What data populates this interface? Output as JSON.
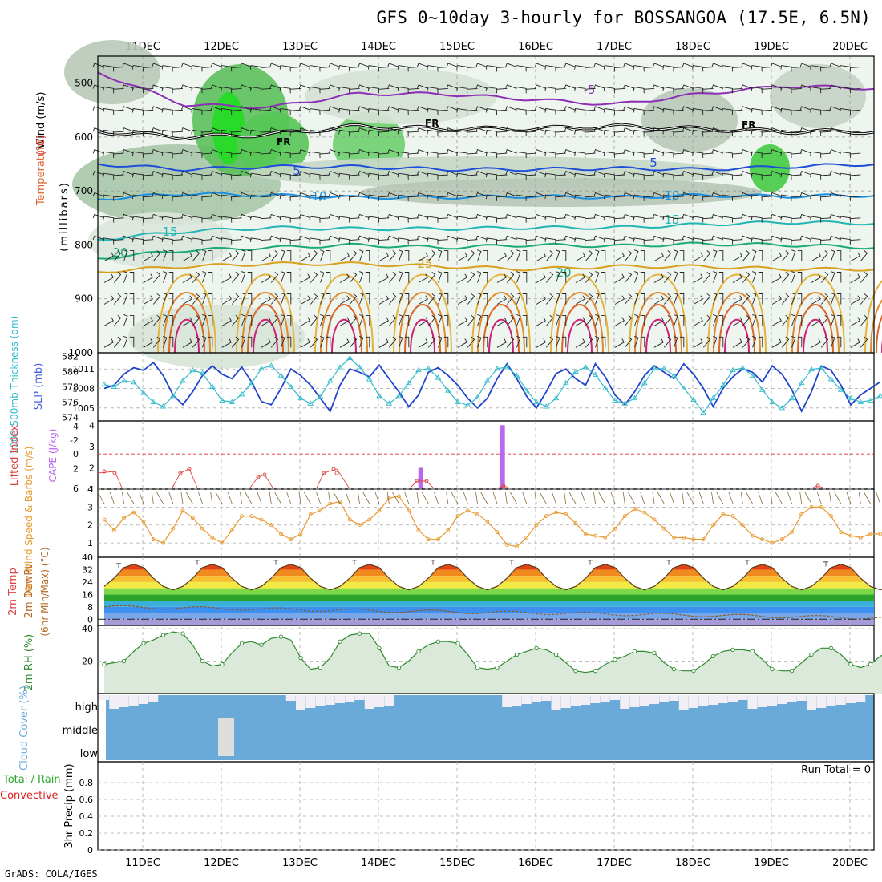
{
  "title": "GFS 0~10day 3-hourly for BOSSANGOA (17.5E, 6.5N)",
  "footer": "GrADS: COLA/IGES",
  "run_total": "Run Total = 0",
  "colors": {
    "wind": "#cc3399",
    "temperature": "#dd3333",
    "rh_green": "#2aa52a",
    "slp": "#2244cc",
    "thickness": "#33bbcc",
    "cape": "#bb66ee",
    "lifted": "#dd4444",
    "wind10": "#e89a33",
    "cloud": "#6aaad8",
    "cloud_bg": "#f1eef6",
    "rh2m": "#2e8a2e",
    "precip_total": "#2aa52a",
    "precip_conv": "#dd2222"
  },
  "chart_data": [
    {
      "id": "upper-air",
      "type": "heatmap",
      "x_dates": [
        "11DEC",
        "12DEC",
        "13DEC",
        "14DEC",
        "15DEC",
        "16DEC",
        "17DEC",
        "18DEC",
        "19DEC",
        "20DEC"
      ],
      "ylabel_parts": [
        "RH (%)",
        "Temperature",
        "(°C)",
        "Wind (m/s)",
        "(millibars)"
      ],
      "yticks": [
        500,
        600,
        700,
        800,
        900,
        1000
      ],
      "ylim": [
        450,
        1000
      ],
      "rh_labels": [
        "10",
        "30",
        "50",
        "500",
        "30"
      ],
      "freezing_label": "FR",
      "temp_contours": [
        {
          "label": "-5",
          "color": "#8c2fb6",
          "levels": [
            480,
            540,
            545,
            520,
            520,
            530,
            540,
            520,
            505,
            510
          ],
          "label_at": 6
        },
        {
          "label": "5",
          "color": "#1f4fd6",
          "levels": [
            650,
            660,
            655,
            655,
            660,
            660,
            658,
            660,
            655,
            650
          ],
          "label_at": 7
        },
        {
          "label": "10",
          "color": "#1a8fe0",
          "levels": [
            715,
            705,
            708,
            712,
            712,
            710,
            712,
            708,
            710,
            708
          ],
          "label_at": 7
        },
        {
          "label": "15",
          "color": "#22b5b5",
          "levels": [
            790,
            775,
            768,
            770,
            770,
            768,
            768,
            762,
            758,
            760
          ],
          "label_at": 7
        },
        {
          "label": "20",
          "color": "#1aa97a",
          "levels": [
            825,
            810,
            805,
            800,
            805,
            800,
            802,
            798,
            800,
            805
          ],
          "label_at": 5
        },
        {
          "label": "25",
          "color": "#d9a020",
          "levels": [
            850,
            840,
            835,
            835,
            840,
            845,
            840,
            840,
            845,
            845
          ],
          "label_at": 3
        }
      ],
      "temp_labels": [
        "-5",
        "5",
        "10",
        "15",
        "20",
        "25",
        "5",
        "10",
        "15",
        "20"
      ]
    },
    {
      "id": "slp-thickness",
      "type": "line",
      "ylabel_left": "1000-500mb Thickness (dm)",
      "ylabel_right": "SLP (mb)",
      "yticks_left": [
        574,
        576,
        578,
        580,
        582
      ],
      "yticks_right": [
        1005,
        1008,
        1011
      ],
      "series": [
        {
          "name": "SLP (mb)",
          "axis": "right",
          "values": [
            1008.0,
            1008.5,
            1010.2,
            1011.2,
            1010.8,
            1012.0,
            1010.0,
            1007.0,
            1005.5,
            1007.5,
            1010.0,
            1011.5,
            1010.2,
            1009.5,
            1011.3,
            1009.0,
            1006.0,
            1005.5,
            1008.0,
            1011.0,
            1010.0,
            1008.5,
            1006.5,
            1004.5,
            1008.5,
            1011.0,
            1010.5,
            1009.8,
            1011.6,
            1009.5,
            1007.5,
            1005.2,
            1007.0,
            1010.5,
            1011.2,
            1010.0,
            1008.5,
            1006.5,
            1005.0,
            1006.5,
            1009.5,
            1011.8,
            1009.5,
            1006.8,
            1005.0,
            1007.5,
            1010.3,
            1011.0,
            1009.5,
            1008.5,
            1011.8,
            1009.8,
            1007.0,
            1005.5,
            1007.5,
            1010.0,
            1011.5,
            1010.5,
            1009.5,
            1011.8,
            1010.2,
            1008.0,
            1005.2,
            1008.0,
            1009.8,
            1011.0,
            1010.5,
            1009.0,
            1011.5,
            1010.2,
            1007.8,
            1004.5,
            1007.5,
            1011.5,
            1010.8,
            1008.5,
            1005.5,
            1007.0,
            1008.0,
            1009.0
          ]
        },
        {
          "name": "Thickness (dm)",
          "axis": "left",
          "values": [
            578.3,
            578.0,
            578.8,
            578.6,
            577.2,
            576.0,
            575.4,
            576.8,
            578.8,
            580.2,
            579.8,
            578.0,
            576.2,
            576.0,
            577.0,
            578.5,
            580.4,
            580.8,
            579.5,
            578.0,
            576.5,
            575.8,
            576.7,
            578.8,
            580.6,
            581.8,
            580.6,
            579.0,
            576.8,
            575.8,
            576.8,
            578.5,
            580.2,
            580.4,
            579.2,
            577.5,
            576.0,
            575.6,
            576.6,
            578.8,
            580.4,
            580.6,
            579.5,
            577.5,
            576.0,
            575.4,
            576.5,
            578.5,
            580.0,
            580.6,
            579.6,
            577.8,
            576.2,
            575.8,
            576.5,
            578.5,
            580.4,
            580.4,
            579.5,
            577.8,
            576.3,
            574.6,
            576.5,
            578.2,
            580.2,
            580.5,
            579.5,
            577.6,
            576.0,
            575.2,
            576.5,
            578.5,
            580.3,
            580.5,
            579.0,
            577.6,
            576.5,
            576.0,
            576.2,
            576.8
          ]
        }
      ]
    },
    {
      "id": "cape-li",
      "type": "bar",
      "ylabel_left": "Lifted Index",
      "ylabel_right": "CAPE (J/kg)",
      "yticks_li": [
        "6",
        "2",
        "0",
        "-2",
        "-4"
      ],
      "yticks_cape": [
        1,
        2,
        3,
        4
      ],
      "cape_values": [
        {
          "x": 4.62,
          "value": 2.0
        },
        {
          "x": 5.66,
          "value": 4.0
        }
      ],
      "li_points": [
        [
          0.15,
          3.2
        ],
        [
          0.3,
          3.3
        ],
        [
          1.0,
          6
        ],
        [
          2.1,
          3.3
        ],
        [
          2.3,
          3.0
        ],
        [
          2.5,
          6
        ],
        [
          3.2,
          4.8
        ],
        [
          3.7,
          4.2
        ],
        [
          3.85,
          5.0
        ],
        [
          4.1,
          6
        ],
        [
          4.75,
          6
        ],
        [
          5.3,
          3.5
        ],
        [
          5.5,
          3.2
        ],
        [
          5.75,
          4.0
        ],
        [
          5.9,
          6
        ],
        [
          6.2,
          6
        ],
        [
          6.5,
          4.5
        ],
        [
          6.7,
          6
        ],
        [
          8.65,
          6
        ]
      ]
    },
    {
      "id": "wind10m",
      "type": "line",
      "ylabel": "10m Wind Speed & Barbs (m/s)",
      "yticks": [
        1,
        2,
        3,
        4
      ],
      "values": [
        2.3,
        1.7,
        2.4,
        2.7,
        2.2,
        1.2,
        1.0,
        1.8,
        2.8,
        2.4,
        1.8,
        1.3,
        1.0,
        1.7,
        2.5,
        2.5,
        2.3,
        2.0,
        1.5,
        1.2,
        1.5,
        2.6,
        2.8,
        3.2,
        3.3,
        2.3,
        2.0,
        2.3,
        2.8,
        3.5,
        3.6,
        2.8,
        1.7,
        1.2,
        1.2,
        1.7,
        2.5,
        2.8,
        2.6,
        2.2,
        1.6,
        0.9,
        0.8,
        1.3,
        2.0,
        2.5,
        2.7,
        2.6,
        2.1,
        1.5,
        1.4,
        1.3,
        1.8,
        2.5,
        2.9,
        2.7,
        2.3,
        1.8,
        1.3,
        1.3,
        1.2,
        1.2,
        2.0,
        2.6,
        2.5,
        2.0,
        1.4,
        1.2,
        1.0,
        1.2,
        1.6,
        2.6,
        3.0,
        3.0,
        2.5,
        1.6,
        1.4,
        1.3,
        1.5,
        1.5
      ]
    },
    {
      "id": "temp2m",
      "type": "area",
      "ylabel_parts": [
        "2m Temp",
        "2m DewPt",
        "(6hr Min/Max) (°C)"
      ],
      "yticks": [
        0,
        8,
        16,
        24,
        32,
        40
      ],
      "days": [
        0,
        1,
        2,
        3,
        4,
        5,
        6,
        7,
        8,
        9
      ],
      "max_temps": [
        33,
        35,
        35,
        35,
        35,
        35,
        35,
        35,
        35,
        34
      ],
      "min_temps": [
        22,
        21,
        21,
        21,
        20,
        20,
        20,
        20,
        20,
        19
      ],
      "dewpoint": [
        8,
        7,
        7,
        6,
        5,
        1,
        -1,
        0,
        1,
        3
      ]
    },
    {
      "id": "rh2m",
      "type": "area",
      "ylabel": "2m RH (%)",
      "yticks": [
        20,
        40
      ],
      "values": [
        18,
        19,
        20,
        26,
        31,
        33,
        36,
        38,
        37,
        30,
        20,
        17,
        18,
        25,
        31,
        32,
        30,
        34,
        35,
        33,
        22,
        15,
        16,
        22,
        32,
        36,
        37,
        37,
        28,
        17,
        16,
        20,
        26,
        30,
        32,
        32,
        31,
        24,
        16,
        15,
        16,
        20,
        24,
        26,
        28,
        27,
        24,
        19,
        14,
        13,
        14,
        18,
        21,
        23,
        26,
        26,
        25,
        19,
        15,
        14,
        14,
        18,
        23,
        26,
        27,
        27,
        26,
        21,
        15,
        14,
        14,
        19,
        24,
        28,
        28,
        24,
        18,
        16,
        18,
        23,
        26,
        29,
        29,
        29,
        26
      ]
    },
    {
      "id": "cloud-cover",
      "type": "heatmap",
      "ylabel": "Cloud Cover (%)",
      "levels": [
        "high",
        "middle",
        "low"
      ]
    },
    {
      "id": "precip",
      "type": "bar",
      "ylabel": "3hr Precip (mm)",
      "legend_left": [
        "Total / Rain",
        "Convective"
      ],
      "yticks": [
        0,
        0.2,
        0.4,
        0.6,
        0.8
      ],
      "ylim": [
        0,
        1.0
      ],
      "values": []
    }
  ]
}
